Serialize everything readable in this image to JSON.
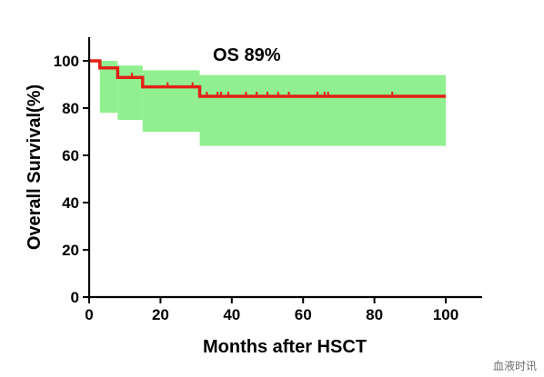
{
  "chart_data": {
    "type": "line",
    "subtype": "kaplan-meier",
    "xlabel": "Months after HSCT",
    "ylabel": "Overall Survival(%)",
    "xlim": [
      0,
      100
    ],
    "ylim": [
      0,
      100
    ],
    "xticks": [
      0,
      20,
      40,
      60,
      80,
      100
    ],
    "yticks": [
      0,
      20,
      40,
      60,
      80,
      100
    ],
    "annotation": "OS 89%",
    "grid": false,
    "survival_steps": [
      {
        "x": 0,
        "y": 100
      },
      {
        "x": 3,
        "y": 97
      },
      {
        "x": 8,
        "y": 93
      },
      {
        "x": 15,
        "y": 89
      },
      {
        "x": 31,
        "y": 85
      },
      {
        "x": 100,
        "y": 85
      }
    ],
    "ci_band": [
      {
        "x0": 3,
        "x1": 8,
        "lower": 78,
        "upper": 100
      },
      {
        "x0": 8,
        "x1": 15,
        "lower": 75,
        "upper": 98
      },
      {
        "x0": 15,
        "x1": 31,
        "lower": 70,
        "upper": 96
      },
      {
        "x0": 31,
        "x1": 100,
        "lower": 64,
        "upper": 94
      }
    ],
    "censor_marks_x": [
      12,
      22,
      29,
      33,
      36,
      37,
      39,
      44,
      47,
      50,
      53,
      56,
      64,
      66,
      67,
      85
    ],
    "colors": {
      "survival_line": "#e32017",
      "ci_band": "#90f090",
      "axis": "#000000"
    }
  },
  "watermark": "血液时讯"
}
